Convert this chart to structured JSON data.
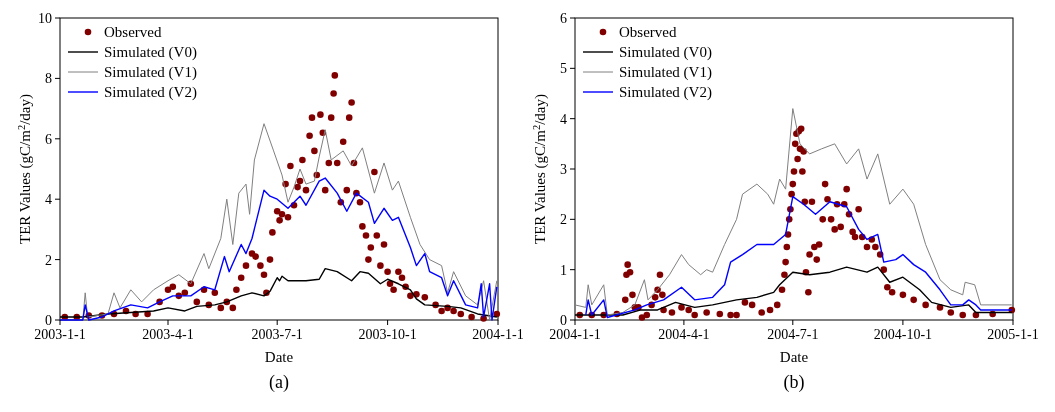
{
  "chart_data": [
    {
      "type": "line",
      "title": "(a)",
      "xlabel": "Date",
      "ylabel": "TER Values (gC/m$^{2}$/day)",
      "xlim": [
        "2003-01-01",
        "2004-01-01"
      ],
      "xticks": [
        {
          "value": "2003-01-01",
          "label": "2003-1-1"
        },
        {
          "value": "2003-04-01",
          "label": "2003-4-1"
        },
        {
          "value": "2003-07-01",
          "label": "2003-7-1"
        },
        {
          "value": "2003-10-01",
          "label": "2003-10-1"
        },
        {
          "value": "2004-01-01",
          "label": "2004-1-1"
        }
      ],
      "ylim": [
        0,
        10
      ],
      "yticks": [
        0,
        2,
        4,
        6,
        8,
        10
      ],
      "legend": "top left",
      "grid": false,
      "series": [
        {
          "name": "Observed",
          "type": "scatter",
          "marker": "circle",
          "color": "#800000",
          "x": [
            "2003-01-05",
            "2003-01-15",
            "2003-01-25",
            "2003-02-05",
            "2003-02-15",
            "2003-02-25",
            "2003-03-05",
            "2003-03-15",
            "2003-03-25",
            "2003-04-01",
            "2003-04-05",
            "2003-04-10",
            "2003-04-15",
            "2003-04-20",
            "2003-04-25",
            "2003-05-01",
            "2003-05-05",
            "2003-05-10",
            "2003-05-15",
            "2003-05-20",
            "2003-05-25",
            "2003-05-28",
            "2003-06-01",
            "2003-06-05",
            "2003-06-10",
            "2003-06-13",
            "2003-06-17",
            "2003-06-20",
            "2003-06-22",
            "2003-06-25",
            "2003-06-27",
            "2003-07-01",
            "2003-07-03",
            "2003-07-05",
            "2003-07-08",
            "2003-07-10",
            "2003-07-12",
            "2003-07-15",
            "2003-07-18",
            "2003-07-20",
            "2003-07-22",
            "2003-07-25",
            "2003-07-28",
            "2003-07-30",
            "2003-08-01",
            "2003-08-03",
            "2003-08-06",
            "2003-08-08",
            "2003-08-10",
            "2003-08-13",
            "2003-08-15",
            "2003-08-17",
            "2003-08-18",
            "2003-08-20",
            "2003-08-23",
            "2003-08-25",
            "2003-08-28",
            "2003-08-30",
            "2003-09-01",
            "2003-09-03",
            "2003-09-05",
            "2003-09-08",
            "2003-09-10",
            "2003-09-13",
            "2003-09-15",
            "2003-09-17",
            "2003-09-20",
            "2003-09-22",
            "2003-09-25",
            "2003-09-28",
            "2003-10-01",
            "2003-10-03",
            "2003-10-06",
            "2003-10-10",
            "2003-10-13",
            "2003-10-16",
            "2003-10-20",
            "2003-10-25",
            "2003-11-01",
            "2003-11-10",
            "2003-11-15",
            "2003-11-20",
            "2003-11-25",
            "2003-12-01",
            "2003-12-10",
            "2003-12-20",
            "2003-12-31"
          ],
          "values": [
            0.1,
            0.1,
            0.15,
            0.15,
            0.2,
            0.3,
            0.2,
            0.2,
            0.6,
            1.0,
            1.1,
            0.8,
            0.9,
            1.2,
            0.6,
            1.0,
            0.5,
            0.9,
            0.4,
            0.6,
            0.4,
            1.0,
            1.4,
            1.8,
            2.2,
            2.1,
            1.8,
            1.5,
            0.9,
            2.0,
            2.9,
            3.6,
            3.3,
            3.5,
            4.5,
            3.4,
            5.1,
            3.8,
            4.4,
            4.6,
            5.3,
            4.3,
            6.1,
            6.7,
            5.6,
            4.8,
            6.8,
            6.2,
            4.3,
            5.2,
            6.7,
            7.5,
            8.1,
            5.2,
            3.9,
            5.9,
            4.3,
            6.7,
            7.2,
            5.2,
            4.2,
            3.9,
            3.1,
            2.8,
            2.0,
            2.4,
            4.9,
            2.8,
            1.8,
            2.5,
            1.6,
            1.2,
            1.0,
            1.6,
            1.4,
            1.1,
            0.8,
            0.85,
            0.75,
            0.5,
            0.3,
            0.4,
            0.3,
            0.2,
            0.1,
            0.05,
            0.2
          ]
        },
        {
          "name": "Simulated (V0)",
          "color": "#000000",
          "x": [
            "2003-01-01",
            "2003-01-20",
            "2003-02-10",
            "2003-03-01",
            "2003-03-20",
            "2003-04-01",
            "2003-04-15",
            "2003-04-25",
            "2003-05-10",
            "2003-05-20",
            "2003-06-01",
            "2003-06-10",
            "2003-06-20",
            "2003-06-25",
            "2003-07-01",
            "2003-07-03",
            "2003-07-05",
            "2003-07-10",
            "2003-07-25",
            "2003-08-05",
            "2003-08-10",
            "2003-08-20",
            "2003-09-01",
            "2003-09-08",
            "2003-09-15",
            "2003-09-25",
            "2003-10-01",
            "2003-10-10",
            "2003-10-20",
            "2003-10-25",
            "2003-11-01",
            "2003-11-20",
            "2003-12-01",
            "2003-12-15",
            "2003-12-31"
          ],
          "values": [
            0.1,
            0.1,
            0.2,
            0.25,
            0.3,
            0.4,
            0.3,
            0.45,
            0.5,
            0.6,
            0.8,
            0.9,
            0.8,
            0.95,
            1.4,
            1.3,
            1.45,
            1.3,
            1.3,
            1.35,
            1.7,
            1.6,
            1.3,
            1.6,
            1.55,
            1.2,
            1.35,
            1.2,
            1.0,
            0.7,
            0.5,
            0.45,
            0.4,
            0.2,
            0.1
          ]
        },
        {
          "name": "Simulated (V1)",
          "color": "#808080",
          "x": [
            "2003-01-01",
            "2003-01-20",
            "2003-01-22",
            "2003-01-24",
            "2003-02-10",
            "2003-02-15",
            "2003-02-20",
            "2003-03-01",
            "2003-03-10",
            "2003-03-20",
            "2003-04-01",
            "2003-04-10",
            "2003-04-20",
            "2003-05-01",
            "2003-05-05",
            "2003-05-15",
            "2003-05-20",
            "2003-05-25",
            "2003-05-30",
            "2003-06-05",
            "2003-06-08",
            "2003-06-12",
            "2003-06-20",
            "2003-06-28",
            "2003-07-05",
            "2003-07-10",
            "2003-07-15",
            "2003-07-20",
            "2003-07-25",
            "2003-08-01",
            "2003-08-05",
            "2003-08-10",
            "2003-08-15",
            "2003-08-25",
            "2003-09-01",
            "2003-09-10",
            "2003-09-20",
            "2003-09-28",
            "2003-10-05",
            "2003-10-10",
            "2003-10-20",
            "2003-10-28",
            "2003-11-05",
            "2003-11-15",
            "2003-11-20",
            "2003-11-25",
            "2003-12-05",
            "2003-12-15",
            "2003-12-20",
            "2003-12-25",
            "2003-12-31"
          ],
          "values": [
            0.0,
            0.0,
            0.9,
            0.1,
            0.2,
            0.9,
            0.4,
            1.0,
            0.6,
            1.0,
            1.3,
            1.5,
            1.2,
            2.2,
            1.7,
            2.7,
            4.0,
            2.5,
            4.2,
            4.5,
            3.5,
            5.3,
            6.5,
            5.6,
            4.8,
            3.9,
            4.4,
            5.0,
            4.5,
            4.6,
            5.4,
            6.3,
            5.3,
            5.6,
            5.1,
            5.7,
            4.2,
            5.2,
            4.3,
            4.6,
            3.4,
            2.5,
            2.0,
            1.8,
            0.9,
            1.6,
            0.8,
            0.5,
            1.3,
            0.0,
            1.3
          ]
        },
        {
          "name": "Simulated (V2)",
          "color": "#0000ff",
          "x": [
            "2003-01-01",
            "2003-01-20",
            "2003-01-22",
            "2003-01-25",
            "2003-02-05",
            "2003-02-15",
            "2003-03-01",
            "2003-03-15",
            "2003-03-25",
            "2003-04-05",
            "2003-04-20",
            "2003-05-01",
            "2003-05-10",
            "2003-05-18",
            "2003-05-22",
            "2003-06-01",
            "2003-06-05",
            "2003-06-10",
            "2003-06-20",
            "2003-06-25",
            "2003-07-01",
            "2003-07-10",
            "2003-07-20",
            "2003-07-25",
            "2003-08-05",
            "2003-08-10",
            "2003-08-20",
            "2003-08-28",
            "2003-09-05",
            "2003-09-15",
            "2003-09-20",
            "2003-09-28",
            "2003-10-05",
            "2003-10-10",
            "2003-10-20",
            "2003-10-25",
            "2003-11-01",
            "2003-11-05",
            "2003-11-15",
            "2003-11-20",
            "2003-11-25",
            "2003-12-05",
            "2003-12-15",
            "2003-12-18",
            "2003-12-20",
            "2003-12-25",
            "2003-12-27",
            "2003-12-31"
          ],
          "values": [
            0.0,
            0.0,
            0.5,
            0.0,
            0.1,
            0.3,
            0.5,
            0.4,
            0.6,
            0.8,
            0.8,
            1.1,
            1.0,
            2.1,
            1.6,
            2.5,
            2.2,
            2.7,
            4.3,
            4.1,
            4.0,
            3.7,
            4.1,
            3.8,
            4.6,
            4.7,
            4.2,
            3.6,
            4.2,
            3.9,
            3.2,
            3.7,
            3.3,
            3.4,
            2.4,
            1.8,
            2.2,
            1.6,
            1.4,
            0.8,
            1.3,
            0.5,
            0.4,
            1.2,
            0.1,
            1.2,
            0.0,
            1.1
          ]
        }
      ]
    },
    {
      "type": "line",
      "title": "(b)",
      "xlabel": "Date",
      "ylabel": "TER Values (gC/m$^{2}$/day)",
      "xlim": [
        "2004-01-01",
        "2005-01-01"
      ],
      "xticks": [
        {
          "value": "2004-01-01",
          "label": "2004-1-1"
        },
        {
          "value": "2004-04-01",
          "label": "2004-4-1"
        },
        {
          "value": "2004-07-01",
          "label": "2004-7-1"
        },
        {
          "value": "2004-10-01",
          "label": "2004-10-1"
        },
        {
          "value": "2005-01-01",
          "label": "2005-1-1"
        }
      ],
      "ylim": [
        0,
        6
      ],
      "yticks": [
        0,
        1,
        2,
        3,
        4,
        5,
        6
      ],
      "legend": "top left",
      "grid": false,
      "series": [
        {
          "name": "Observed",
          "type": "scatter",
          "marker": "circle",
          "color": "#800000",
          "x": [
            "2004-01-05",
            "2004-01-15",
            "2004-01-25",
            "2004-02-05",
            "2004-02-12",
            "2004-02-13",
            "2004-02-14",
            "2004-02-16",
            "2004-02-18",
            "2004-02-20",
            "2004-02-23",
            "2004-02-26",
            "2004-03-01",
            "2004-03-05",
            "2004-03-08",
            "2004-03-10",
            "2004-03-12",
            "2004-03-14",
            "2004-03-15",
            "2004-03-22",
            "2004-03-30",
            "2004-04-05",
            "2004-04-10",
            "2004-04-20",
            "2004-05-01",
            "2004-05-10",
            "2004-05-15",
            "2004-05-22",
            "2004-05-28",
            "2004-06-05",
            "2004-06-12",
            "2004-06-18",
            "2004-06-22",
            "2004-06-24",
            "2004-06-25",
            "2004-06-26",
            "2004-06-27",
            "2004-06-28",
            "2004-06-29",
            "2004-06-30",
            "2004-07-01",
            "2004-07-02",
            "2004-07-03",
            "2004-07-04",
            "2004-07-05",
            "2004-07-06",
            "2004-07-07",
            "2004-07-08",
            "2004-07-09",
            "2004-07-10",
            "2004-07-11",
            "2004-07-12",
            "2004-07-14",
            "2004-07-15",
            "2004-07-17",
            "2004-07-19",
            "2004-07-21",
            "2004-07-23",
            "2004-07-26",
            "2004-07-28",
            "2004-07-30",
            "2004-08-02",
            "2004-08-05",
            "2004-08-07",
            "2004-08-10",
            "2004-08-13",
            "2004-08-15",
            "2004-08-17",
            "2004-08-20",
            "2004-08-22",
            "2004-08-25",
            "2004-08-28",
            "2004-09-01",
            "2004-09-05",
            "2004-09-08",
            "2004-09-12",
            "2004-09-15",
            "2004-09-18",
            "2004-09-22",
            "2004-10-01",
            "2004-10-10",
            "2004-10-20",
            "2004-11-01",
            "2004-11-10",
            "2004-11-20",
            "2004-12-01",
            "2004-12-15",
            "2004-12-31"
          ],
          "values": [
            0.1,
            0.1,
            0.1,
            0.12,
            0.4,
            0.9,
            1.1,
            0.95,
            0.5,
            0.25,
            0.25,
            0.05,
            0.1,
            0.3,
            0.45,
            0.6,
            0.9,
            0.5,
            0.2,
            0.15,
            0.25,
            0.2,
            0.1,
            0.15,
            0.12,
            0.1,
            0.1,
            0.35,
            0.3,
            0.15,
            0.2,
            0.3,
            0.6,
            0.9,
            1.15,
            1.45,
            1.7,
            2.0,
            2.2,
            2.5,
            2.7,
            2.95,
            3.5,
            3.7,
            3.2,
            3.75,
            3.4,
            3.8,
            2.95,
            3.35,
            2.35,
            0.95,
            0.55,
            1.3,
            2.35,
            1.45,
            1.2,
            1.5,
            2.0,
            2.7,
            2.4,
            2.0,
            1.8,
            2.3,
            1.85,
            2.3,
            2.6,
            2.1,
            1.75,
            1.65,
            2.2,
            1.65,
            1.45,
            1.6,
            1.45,
            1.3,
            1.0,
            0.65,
            0.55,
            0.5,
            0.4,
            0.3,
            0.25,
            0.15,
            0.1,
            0.1,
            0.12,
            0.2
          ]
        },
        {
          "name": "Simulated (V0)",
          "color": "#000000",
          "x": [
            "2004-01-01",
            "2004-02-10",
            "2004-02-25",
            "2004-03-10",
            "2004-03-25",
            "2004-04-10",
            "2004-04-25",
            "2004-05-15",
            "2004-06-01",
            "2004-06-15",
            "2004-06-20",
            "2004-07-01",
            "2004-07-15",
            "2004-08-01",
            "2004-08-15",
            "2004-09-01",
            "2004-09-10",
            "2004-09-20",
            "2004-10-01",
            "2004-10-15",
            "2004-10-25",
            "2004-11-10",
            "2004-11-25",
            "2004-12-01",
            "2004-12-31"
          ],
          "values": [
            0.1,
            0.1,
            0.2,
            0.2,
            0.35,
            0.25,
            0.3,
            0.4,
            0.45,
            0.55,
            0.7,
            0.95,
            0.9,
            0.95,
            1.05,
            0.95,
            1.05,
            0.75,
            0.85,
            0.6,
            0.35,
            0.25,
            0.3,
            0.15,
            0.15
          ]
        },
        {
          "name": "Simulated (V1)",
          "color": "#808080",
          "x": [
            "2004-01-01",
            "2004-01-10",
            "2004-01-12",
            "2004-01-15",
            "2004-01-25",
            "2004-01-28",
            "2004-02-10",
            "2004-02-20",
            "2004-02-28",
            "2004-03-02",
            "2004-03-10",
            "2004-03-20",
            "2004-03-30",
            "2004-04-05",
            "2004-04-15",
            "2004-04-20",
            "2004-04-25",
            "2004-05-05",
            "2004-05-15",
            "2004-05-20",
            "2004-06-01",
            "2004-06-10",
            "2004-06-15",
            "2004-06-20",
            "2004-06-25",
            "2004-07-01",
            "2004-07-07",
            "2004-07-15",
            "2004-07-25",
            "2004-08-05",
            "2004-08-15",
            "2004-08-25",
            "2004-09-01",
            "2004-09-10",
            "2004-09-20",
            "2004-10-01",
            "2004-10-10",
            "2004-10-20",
            "2004-11-01",
            "2004-11-10",
            "2004-11-20",
            "2004-11-22",
            "2004-11-30",
            "2004-12-05",
            "2004-12-31"
          ],
          "values": [
            0.3,
            0.25,
            0.7,
            0.3,
            0.7,
            0.1,
            0.15,
            0.3,
            0.8,
            0.4,
            0.6,
            0.9,
            1.3,
            1.1,
            0.9,
            1.0,
            0.95,
            1.5,
            2.0,
            2.5,
            2.7,
            2.5,
            2.3,
            2.8,
            2.6,
            4.2,
            3.5,
            3.3,
            3.4,
            3.5,
            3.1,
            3.4,
            2.8,
            3.3,
            2.3,
            2.6,
            2.3,
            1.5,
            0.8,
            0.6,
            0.5,
            0.75,
            0.7,
            0.3,
            0.3
          ]
        },
        {
          "name": "Simulated (V2)",
          "color": "#0000ff",
          "x": [
            "2004-01-10",
            "2004-01-12",
            "2004-01-15",
            "2004-01-25",
            "2004-01-28",
            "2004-02-20",
            "2004-03-01",
            "2004-03-15",
            "2004-03-30",
            "2004-04-10",
            "2004-04-25",
            "2004-05-05",
            "2004-05-10",
            "2004-05-20",
            "2004-06-01",
            "2004-06-15",
            "2004-06-25",
            "2004-07-01",
            "2004-07-10",
            "2004-07-20",
            "2004-08-01",
            "2004-08-15",
            "2004-08-25",
            "2004-09-01",
            "2004-09-10",
            "2004-09-15",
            "2004-09-25",
            "2004-10-01",
            "2004-10-10",
            "2004-10-20",
            "2004-11-01",
            "2004-11-10",
            "2004-11-20",
            "2004-11-25",
            "2004-12-01",
            "2004-12-05",
            "2004-12-31"
          ],
          "values": [
            0.1,
            0.4,
            0.1,
            0.4,
            0.05,
            0.2,
            0.3,
            0.4,
            0.65,
            0.4,
            0.45,
            0.7,
            1.15,
            1.3,
            1.5,
            1.5,
            1.7,
            2.45,
            2.3,
            2.1,
            2.35,
            2.25,
            1.8,
            1.6,
            1.7,
            1.15,
            1.2,
            1.3,
            1.1,
            0.95,
            0.6,
            0.3,
            0.3,
            0.4,
            0.3,
            0.2,
            0.2
          ]
        }
      ]
    }
  ]
}
